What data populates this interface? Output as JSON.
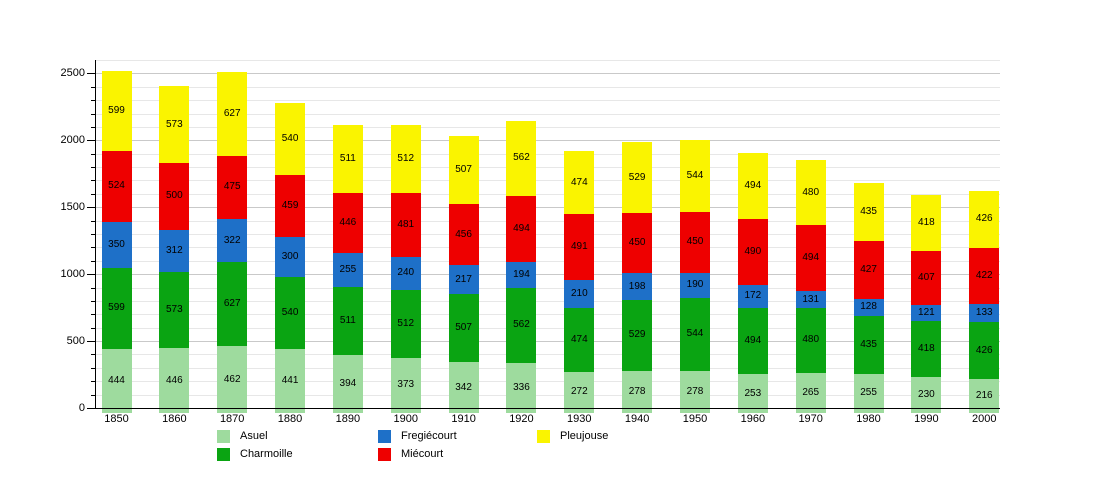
{
  "chart_data": {
    "type": "bar",
    "stacked": true,
    "title": "",
    "xlabel": "",
    "ylabel": "",
    "categories": [
      "1850",
      "1860",
      "1870",
      "1880",
      "1890",
      "1900",
      "1910",
      "1920",
      "1930",
      "1940",
      "1950",
      "1960",
      "1970",
      "1980",
      "1990",
      "2000"
    ],
    "series": [
      {
        "name": "Asuel",
        "color": "#9edb9e",
        "values": [
          444,
          446,
          462,
          441,
          394,
          373,
          342,
          336,
          272,
          278,
          278,
          253,
          265,
          255,
          230,
          216
        ]
      },
      {
        "name": "Charmoille",
        "color": "#0aa412",
        "values": [
          599,
          573,
          627,
          540,
          511,
          512,
          507,
          562,
          474,
          529,
          544,
          494,
          480,
          435,
          418,
          426
        ]
      },
      {
        "name": "Fregiécourt",
        "color": "#1e70c8",
        "values": [
          350,
          312,
          322,
          300,
          255,
          240,
          217,
          194,
          210,
          198,
          190,
          172,
          131,
          128,
          121,
          133
        ]
      },
      {
        "name": "Miécourt",
        "color": "#ee0000",
        "values": [
          524,
          500,
          475,
          459,
          446,
          481,
          456,
          494,
          491,
          450,
          450,
          490,
          494,
          427,
          407,
          422
        ]
      },
      {
        "name": "Pleujouse",
        "color": "#faf400",
        "values": [
          599,
          573,
          627,
          540,
          511,
          512,
          507,
          562,
          474,
          529,
          544,
          494,
          480,
          435,
          418,
          426
        ]
      }
    ],
    "y_ticks": [
      0,
      500,
      1000,
      1500,
      2000,
      2500
    ],
    "ylim": [
      0,
      2600
    ],
    "grid_step": 100,
    "grid": true,
    "legend_position": "bottom",
    "value_labels": "inside-segments",
    "axis_color": "#000000",
    "gridline_minor_color": "#e7e7e7",
    "gridline_major_color": "#c9c9c9",
    "background_color": "#ffffff"
  }
}
